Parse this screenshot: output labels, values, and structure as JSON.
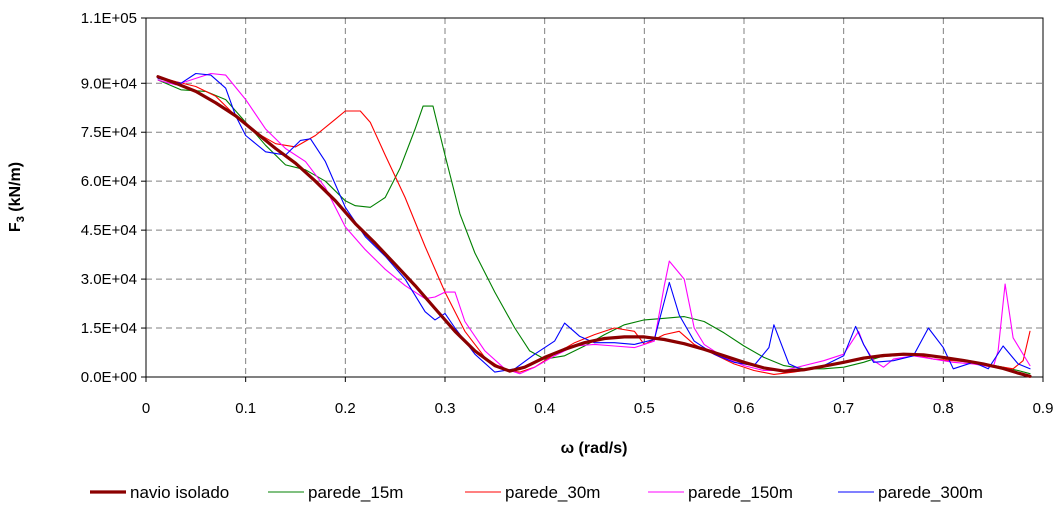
{
  "chart_data": {
    "type": "line",
    "title": "",
    "xlabel": "ω (rad/s)",
    "ylabel_main": "F",
    "ylabel_sub": "3",
    "ylabel_unit": " (kN/m)",
    "xlim": [
      0,
      0.9
    ],
    "ylim": [
      0,
      110000
    ],
    "x_ticks": [
      0,
      0.1,
      0.2,
      0.3,
      0.4,
      0.5,
      0.6,
      0.7,
      0.8,
      0.9
    ],
    "x_tick_labels": [
      "0",
      "0.1",
      "0.2",
      "0.3",
      "0.4",
      "0.5",
      "0.6",
      "0.7",
      "0.8",
      "0.9"
    ],
    "y_ticks": [
      0,
      15000,
      30000,
      45000,
      60000,
      75000,
      90000,
      110000
    ],
    "y_tick_labels": [
      "0.0E+00",
      "1.5E+04",
      "3.0E+04",
      "4.5E+04",
      "6.0E+04",
      "7.5E+04",
      "9.0E+04",
      "1.1E+05"
    ],
    "grid": true,
    "legend_position": "bottom",
    "series": [
      {
        "name": "navio isolado",
        "color": "#8B0000",
        "width": 3.2,
        "points": [
          [
            0.012,
            92000
          ],
          [
            0.03,
            90000
          ],
          [
            0.05,
            87500
          ],
          [
            0.07,
            84000
          ],
          [
            0.09,
            80000
          ],
          [
            0.11,
            75000
          ],
          [
            0.13,
            70000
          ],
          [
            0.15,
            65500
          ],
          [
            0.17,
            60000
          ],
          [
            0.19,
            54000
          ],
          [
            0.21,
            47000
          ],
          [
            0.23,
            41000
          ],
          [
            0.25,
            34500
          ],
          [
            0.27,
            28000
          ],
          [
            0.29,
            21000
          ],
          [
            0.31,
            14000
          ],
          [
            0.33,
            8000
          ],
          [
            0.35,
            3500
          ],
          [
            0.365,
            1800
          ],
          [
            0.38,
            3000
          ],
          [
            0.4,
            6000
          ],
          [
            0.42,
            8500
          ],
          [
            0.44,
            10500
          ],
          [
            0.46,
            11800
          ],
          [
            0.48,
            12300
          ],
          [
            0.5,
            12300
          ],
          [
            0.52,
            11500
          ],
          [
            0.54,
            10200
          ],
          [
            0.56,
            8500
          ],
          [
            0.58,
            6500
          ],
          [
            0.6,
            4500
          ],
          [
            0.62,
            2800
          ],
          [
            0.64,
            1800
          ],
          [
            0.66,
            2200
          ],
          [
            0.68,
            3300
          ],
          [
            0.7,
            4500
          ],
          [
            0.72,
            5800
          ],
          [
            0.74,
            6600
          ],
          [
            0.76,
            7000
          ],
          [
            0.78,
            6800
          ],
          [
            0.8,
            6000
          ],
          [
            0.82,
            5100
          ],
          [
            0.84,
            4000
          ],
          [
            0.86,
            2600
          ],
          [
            0.875,
            1200
          ],
          [
            0.887,
            200
          ]
        ]
      },
      {
        "name": "parede_15m",
        "color": "#008000",
        "width": 1.1,
        "points": [
          [
            0.012,
            91000
          ],
          [
            0.035,
            88000
          ],
          [
            0.06,
            87500
          ],
          [
            0.08,
            85000
          ],
          [
            0.1,
            78000
          ],
          [
            0.12,
            71000
          ],
          [
            0.14,
            65000
          ],
          [
            0.16,
            63500
          ],
          [
            0.18,
            60000
          ],
          [
            0.2,
            54000
          ],
          [
            0.21,
            52500
          ],
          [
            0.225,
            52000
          ],
          [
            0.24,
            55000
          ],
          [
            0.255,
            64000
          ],
          [
            0.27,
            76000
          ],
          [
            0.278,
            83000
          ],
          [
            0.288,
            83000
          ],
          [
            0.3,
            68000
          ],
          [
            0.315,
            50000
          ],
          [
            0.33,
            38000
          ],
          [
            0.35,
            26000
          ],
          [
            0.37,
            15000
          ],
          [
            0.385,
            8000
          ],
          [
            0.4,
            5500
          ],
          [
            0.42,
            6500
          ],
          [
            0.44,
            9500
          ],
          [
            0.46,
            13000
          ],
          [
            0.48,
            16000
          ],
          [
            0.5,
            17500
          ],
          [
            0.52,
            18000
          ],
          [
            0.54,
            18500
          ],
          [
            0.56,
            17000
          ],
          [
            0.58,
            13500
          ],
          [
            0.6,
            9500
          ],
          [
            0.62,
            6000
          ],
          [
            0.64,
            3500
          ],
          [
            0.66,
            2500
          ],
          [
            0.68,
            2500
          ],
          [
            0.7,
            3000
          ],
          [
            0.72,
            4500
          ],
          [
            0.74,
            6500
          ],
          [
            0.76,
            7000
          ],
          [
            0.78,
            6800
          ],
          [
            0.8,
            6000
          ],
          [
            0.82,
            5300
          ],
          [
            0.84,
            4200
          ],
          [
            0.86,
            3000
          ],
          [
            0.875,
            2000
          ],
          [
            0.887,
            1000
          ]
        ]
      },
      {
        "name": "parede_30m",
        "color": "#FF0000",
        "width": 1.1,
        "points": [
          [
            0.012,
            92000
          ],
          [
            0.03,
            90500
          ],
          [
            0.05,
            89000
          ],
          [
            0.07,
            86000
          ],
          [
            0.09,
            80000
          ],
          [
            0.11,
            75000
          ],
          [
            0.13,
            71500
          ],
          [
            0.15,
            70500
          ],
          [
            0.17,
            74000
          ],
          [
            0.19,
            79000
          ],
          [
            0.2,
            81500
          ],
          [
            0.215,
            81500
          ],
          [
            0.225,
            78000
          ],
          [
            0.24,
            68000
          ],
          [
            0.26,
            55000
          ],
          [
            0.28,
            40000
          ],
          [
            0.3,
            26000
          ],
          [
            0.32,
            14000
          ],
          [
            0.34,
            6000
          ],
          [
            0.36,
            2000
          ],
          [
            0.375,
            1500
          ],
          [
            0.39,
            3000
          ],
          [
            0.41,
            7000
          ],
          [
            0.43,
            10500
          ],
          [
            0.45,
            13000
          ],
          [
            0.47,
            15000
          ],
          [
            0.49,
            14000
          ],
          [
            0.5,
            10000
          ],
          [
            0.52,
            13000
          ],
          [
            0.535,
            14000
          ],
          [
            0.55,
            10000
          ],
          [
            0.57,
            7000
          ],
          [
            0.59,
            4000
          ],
          [
            0.61,
            2000
          ],
          [
            0.63,
            800
          ],
          [
            0.65,
            1500
          ],
          [
            0.67,
            2500
          ],
          [
            0.69,
            4000
          ],
          [
            0.71,
            5000
          ],
          [
            0.73,
            6000
          ],
          [
            0.75,
            6500
          ],
          [
            0.77,
            7000
          ],
          [
            0.79,
            5500
          ],
          [
            0.81,
            5000
          ],
          [
            0.83,
            4500
          ],
          [
            0.85,
            3500
          ],
          [
            0.87,
            2500
          ],
          [
            0.88,
            5000
          ],
          [
            0.887,
            14000
          ]
        ]
      },
      {
        "name": "parede_150m",
        "color": "#FF00FF",
        "width": 1.1,
        "points": [
          [
            0.012,
            91000
          ],
          [
            0.03,
            89500
          ],
          [
            0.05,
            91500
          ],
          [
            0.065,
            93000
          ],
          [
            0.08,
            92500
          ],
          [
            0.1,
            85000
          ],
          [
            0.12,
            76000
          ],
          [
            0.14,
            70000
          ],
          [
            0.16,
            66000
          ],
          [
            0.18,
            58000
          ],
          [
            0.2,
            46000
          ],
          [
            0.22,
            39000
          ],
          [
            0.24,
            33000
          ],
          [
            0.26,
            28000
          ],
          [
            0.28,
            24000
          ],
          [
            0.29,
            24500
          ],
          [
            0.3,
            26000
          ],
          [
            0.31,
            26000
          ],
          [
            0.32,
            17000
          ],
          [
            0.34,
            8000
          ],
          [
            0.36,
            2500
          ],
          [
            0.375,
            1000
          ],
          [
            0.39,
            3000
          ],
          [
            0.41,
            6500
          ],
          [
            0.43,
            9500
          ],
          [
            0.45,
            10000
          ],
          [
            0.47,
            9500
          ],
          [
            0.49,
            9000
          ],
          [
            0.51,
            11000
          ],
          [
            0.52,
            28000
          ],
          [
            0.525,
            35500
          ],
          [
            0.54,
            30000
          ],
          [
            0.55,
            15000
          ],
          [
            0.56,
            10000
          ],
          [
            0.58,
            6000
          ],
          [
            0.6,
            3500
          ],
          [
            0.62,
            2000
          ],
          [
            0.64,
            2000
          ],
          [
            0.66,
            3500
          ],
          [
            0.68,
            5000
          ],
          [
            0.7,
            7000
          ],
          [
            0.715,
            14000
          ],
          [
            0.72,
            10000
          ],
          [
            0.73,
            5000
          ],
          [
            0.74,
            3000
          ],
          [
            0.75,
            5500
          ],
          [
            0.77,
            6500
          ],
          [
            0.79,
            5500
          ],
          [
            0.81,
            4500
          ],
          [
            0.83,
            4000
          ],
          [
            0.85,
            3000
          ],
          [
            0.855,
            8000
          ],
          [
            0.862,
            28500
          ],
          [
            0.87,
            12000
          ],
          [
            0.887,
            3500
          ]
        ]
      },
      {
        "name": "parede_300m",
        "color": "#0000FF",
        "width": 1.1,
        "points": [
          [
            0.012,
            91500
          ],
          [
            0.035,
            90000
          ],
          [
            0.05,
            93000
          ],
          [
            0.065,
            92500
          ],
          [
            0.08,
            88500
          ],
          [
            0.09,
            80000
          ],
          [
            0.1,
            74000
          ],
          [
            0.12,
            69000
          ],
          [
            0.14,
            68000
          ],
          [
            0.155,
            72500
          ],
          [
            0.165,
            73000
          ],
          [
            0.18,
            66000
          ],
          [
            0.2,
            52000
          ],
          [
            0.22,
            43000
          ],
          [
            0.24,
            37000
          ],
          [
            0.26,
            30000
          ],
          [
            0.28,
            20000
          ],
          [
            0.29,
            17500
          ],
          [
            0.3,
            19500
          ],
          [
            0.31,
            15000
          ],
          [
            0.33,
            7000
          ],
          [
            0.35,
            1500
          ],
          [
            0.37,
            2500
          ],
          [
            0.39,
            7000
          ],
          [
            0.41,
            11000
          ],
          [
            0.42,
            16500
          ],
          [
            0.435,
            12500
          ],
          [
            0.45,
            10500
          ],
          [
            0.47,
            10500
          ],
          [
            0.49,
            10000
          ],
          [
            0.51,
            11500
          ],
          [
            0.525,
            29000
          ],
          [
            0.535,
            19000
          ],
          [
            0.55,
            11000
          ],
          [
            0.57,
            7000
          ],
          [
            0.59,
            4500
          ],
          [
            0.61,
            3500
          ],
          [
            0.625,
            9000
          ],
          [
            0.63,
            16000
          ],
          [
            0.645,
            4000
          ],
          [
            0.66,
            2000
          ],
          [
            0.68,
            3500
          ],
          [
            0.7,
            6500
          ],
          [
            0.712,
            15500
          ],
          [
            0.72,
            10000
          ],
          [
            0.73,
            4500
          ],
          [
            0.75,
            5000
          ],
          [
            0.77,
            6500
          ],
          [
            0.785,
            15000
          ],
          [
            0.8,
            9000
          ],
          [
            0.81,
            2500
          ],
          [
            0.83,
            4500
          ],
          [
            0.845,
            2500
          ],
          [
            0.86,
            9500
          ],
          [
            0.875,
            4000
          ],
          [
            0.887,
            2500
          ]
        ]
      }
    ]
  }
}
